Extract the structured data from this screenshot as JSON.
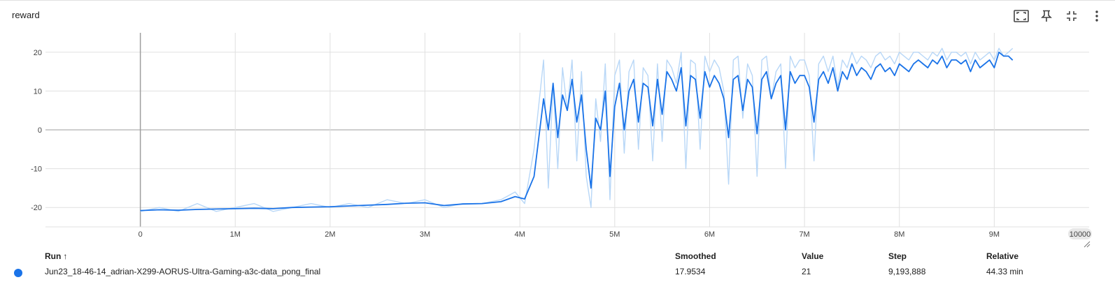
{
  "card": {
    "title": "reward"
  },
  "toolbar": [
    {
      "name": "fit-domain-icon"
    },
    {
      "name": "pin-icon"
    },
    {
      "name": "collapse-icon"
    },
    {
      "name": "more-vert-icon"
    }
  ],
  "colors": {
    "smoothed": "#1a73e8",
    "raw": "#b8d7f7",
    "grid": "#e0e0e0",
    "zero_line": "#9e9e9e",
    "run_dot": "#1a73e8"
  },
  "chart_data": {
    "type": "line",
    "title": "reward",
    "xlabel": "",
    "ylabel": "",
    "xlim": [
      -1000000,
      10000000
    ],
    "ylim": [
      -25,
      25
    ],
    "x_ticks": [
      0,
      1000000,
      2000000,
      3000000,
      4000000,
      5000000,
      6000000,
      7000000,
      8000000,
      9000000
    ],
    "x_tick_labels": [
      "0",
      "1M",
      "2M",
      "3M",
      "4M",
      "5M",
      "6M",
      "7M",
      "8M",
      "9M"
    ],
    "x_end_label": "10000",
    "y_ticks": [
      -20,
      -10,
      0,
      10,
      20
    ],
    "y_tick_labels": [
      "-20",
      "-10",
      "0",
      "10",
      "20"
    ],
    "grid": true,
    "series": [
      {
        "role": "raw",
        "x": [
          0,
          200000,
          400000,
          600000,
          800000,
          1000000,
          1200000,
          1400000,
          1600000,
          1800000,
          2000000,
          2200000,
          2400000,
          2600000,
          2800000,
          3000000,
          3200000,
          3400000,
          3600000,
          3800000,
          3950000,
          4050000,
          4150000,
          4250000,
          4300000,
          4350000,
          4400000,
          4450000,
          4500000,
          4550000,
          4600000,
          4650000,
          4700000,
          4750000,
          4800000,
          4850000,
          4900000,
          4950000,
          5000000,
          5050000,
          5100000,
          5150000,
          5200000,
          5250000,
          5300000,
          5350000,
          5400000,
          5450000,
          5500000,
          5550000,
          5600000,
          5650000,
          5700000,
          5750000,
          5800000,
          5850000,
          5900000,
          5950000,
          6000000,
          6050000,
          6100000,
          6150000,
          6200000,
          6250000,
          6300000,
          6350000,
          6400000,
          6450000,
          6500000,
          6550000,
          6600000,
          6650000,
          6700000,
          6750000,
          6800000,
          6850000,
          6900000,
          6950000,
          7000000,
          7050000,
          7100000,
          7150000,
          7200000,
          7250000,
          7300000,
          7350000,
          7400000,
          7450000,
          7500000,
          7550000,
          7600000,
          7650000,
          7700000,
          7750000,
          7800000,
          7850000,
          7900000,
          7950000,
          8000000,
          8050000,
          8100000,
          8150000,
          8200000,
          8250000,
          8300000,
          8350000,
          8400000,
          8450000,
          8500000,
          8550000,
          8600000,
          8650000,
          8700000,
          8750000,
          8800000,
          8850000,
          8900000,
          8950000,
          9000000,
          9050000,
          9100000,
          9150000,
          9193888
        ],
        "values": [
          -21,
          -20,
          -21,
          -19,
          -21,
          -20,
          -19,
          -21,
          -20,
          -19,
          -20,
          -19,
          -20,
          -18,
          -19,
          -18,
          -20,
          -19,
          -19,
          -18,
          -16,
          -19,
          -5,
          18,
          -15,
          12,
          -10,
          16,
          5,
          18,
          -8,
          15,
          -12,
          -20,
          8,
          -3,
          17,
          -18,
          14,
          18,
          -6,
          15,
          18,
          -5,
          16,
          14,
          -8,
          17,
          -3,
          18,
          16,
          12,
          20,
          -10,
          18,
          17,
          -5,
          19,
          15,
          18,
          16,
          10,
          -14,
          18,
          19,
          3,
          17,
          14,
          -12,
          18,
          19,
          8,
          15,
          17,
          -10,
          19,
          16,
          18,
          18,
          14,
          -8,
          17,
          19,
          15,
          19,
          11,
          18,
          16,
          20,
          17,
          19,
          18,
          16,
          19,
          20,
          18,
          19,
          17,
          20,
          19,
          18,
          20,
          20,
          19,
          18,
          20,
          19,
          21,
          18,
          20,
          20,
          19,
          20,
          17,
          20,
          18,
          19,
          20,
          18,
          21,
          19,
          20,
          21
        ]
      },
      {
        "role": "smoothed",
        "x": [
          0,
          200000,
          400000,
          600000,
          800000,
          1000000,
          1200000,
          1400000,
          1600000,
          1800000,
          2000000,
          2200000,
          2400000,
          2600000,
          2800000,
          3000000,
          3200000,
          3400000,
          3600000,
          3800000,
          3950000,
          4050000,
          4150000,
          4250000,
          4300000,
          4350000,
          4400000,
          4450000,
          4500000,
          4550000,
          4600000,
          4650000,
          4700000,
          4750000,
          4800000,
          4850000,
          4900000,
          4950000,
          5000000,
          5050000,
          5100000,
          5150000,
          5200000,
          5250000,
          5300000,
          5350000,
          5400000,
          5450000,
          5500000,
          5550000,
          5600000,
          5650000,
          5700000,
          5750000,
          5800000,
          5850000,
          5900000,
          5950000,
          6000000,
          6050000,
          6100000,
          6150000,
          6200000,
          6250000,
          6300000,
          6350000,
          6400000,
          6450000,
          6500000,
          6550000,
          6600000,
          6650000,
          6700000,
          6750000,
          6800000,
          6850000,
          6900000,
          6950000,
          7000000,
          7050000,
          7100000,
          7150000,
          7200000,
          7250000,
          7300000,
          7350000,
          7400000,
          7450000,
          7500000,
          7550000,
          7600000,
          7650000,
          7700000,
          7750000,
          7800000,
          7850000,
          7900000,
          7950000,
          8000000,
          8050000,
          8100000,
          8150000,
          8200000,
          8250000,
          8300000,
          8350000,
          8400000,
          8450000,
          8500000,
          8550000,
          8600000,
          8650000,
          8700000,
          8750000,
          8800000,
          8850000,
          8900000,
          8950000,
          9000000,
          9050000,
          9100000,
          9150000,
          9193888
        ],
        "values": [
          -20.8,
          -20.6,
          -20.7,
          -20.5,
          -20.4,
          -20.3,
          -20.2,
          -20.3,
          -20.0,
          -19.9,
          -19.8,
          -19.6,
          -19.4,
          -19.2,
          -18.9,
          -18.8,
          -19.5,
          -19.1,
          -19.0,
          -18.5,
          -17.2,
          -17.8,
          -12.0,
          8.0,
          0.0,
          12.0,
          -2.0,
          9.0,
          5.0,
          13.0,
          2.0,
          9.0,
          -5.0,
          -15.0,
          3.0,
          0.0,
          10.0,
          -12.0,
          6.0,
          12.0,
          0.0,
          10.0,
          13.0,
          2.0,
          12.0,
          11.0,
          1.0,
          13.0,
          4.0,
          15.0,
          13.0,
          10.0,
          16.0,
          1.0,
          14.0,
          13.0,
          3.0,
          15.0,
          11.0,
          14.0,
          12.0,
          8.0,
          -2.0,
          13.0,
          14.0,
          5.0,
          13.0,
          11.0,
          -1.0,
          13.0,
          15.0,
          8.0,
          12.0,
          14.0,
          0.0,
          15.0,
          12.0,
          14.0,
          14.0,
          11.0,
          2.0,
          13.0,
          15.0,
          12.0,
          16.0,
          10.0,
          15.0,
          13.0,
          17.0,
          14.0,
          16.0,
          15.0,
          13.0,
          16.0,
          17.0,
          15.0,
          16.0,
          14.0,
          17.0,
          16.0,
          15.0,
          17.0,
          18.0,
          17.0,
          16.0,
          18.0,
          17.0,
          19.0,
          16.0,
          18.0,
          18.0,
          17.0,
          18.0,
          15.0,
          18.0,
          16.0,
          17.0,
          18.0,
          16.0,
          20.0,
          19.0,
          19.0,
          17.95
        ]
      }
    ]
  },
  "table": {
    "headers": {
      "run": "Run",
      "sort": "↑",
      "smoothed": "Smoothed",
      "value": "Value",
      "step": "Step",
      "relative": "Relative"
    },
    "rows": [
      {
        "run": "Jun23_18-46-14_adrian-X299-AORUS-Ultra-Gaming-a3c-data_pong_final",
        "smoothed": "17.9534",
        "value": "21",
        "step": "9,193,888",
        "relative": "44.33 min"
      }
    ]
  }
}
